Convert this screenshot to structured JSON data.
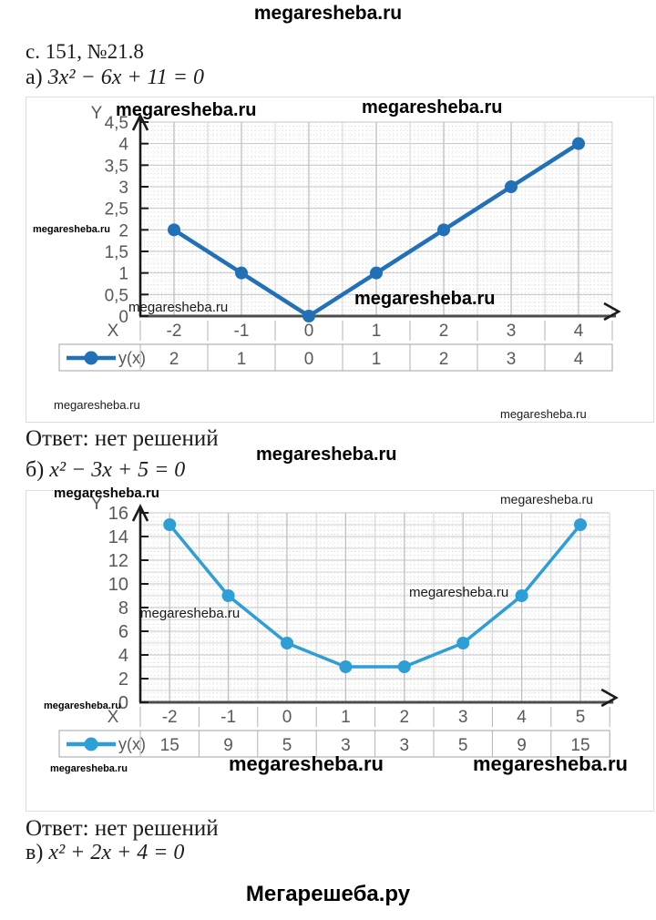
{
  "site_header": "megaresheba.ru",
  "watermark": "megaresheba.ru",
  "footer_brand": "Мегарешеба.ру",
  "problem": {
    "reference": "с. 151, №21.8",
    "parts": [
      {
        "label": "а)",
        "equation": "3x² − 6x + 11 = 0",
        "answer": "Ответ: нет решений"
      },
      {
        "label": "б)",
        "equation": "x² − 3x + 5 = 0",
        "answer": "Ответ: нет решений"
      },
      {
        "label": "в)",
        "equation": "x² + 2x + 4 = 0"
      }
    ]
  },
  "chart_data": [
    {
      "type": "line",
      "x": [
        -2,
        -1,
        0,
        1,
        2,
        3,
        4
      ],
      "series": [
        {
          "name": "y(x)",
          "values": [
            2,
            1,
            0,
            1,
            2,
            3,
            4
          ]
        }
      ],
      "xlabel": "X",
      "ylabel": "Y",
      "ylim": [
        0,
        4.5
      ],
      "ytick_step": 0.5,
      "ytick_labels": [
        "4,5",
        "4",
        "3,5",
        "3",
        "2,5",
        "2",
        "1,5",
        "1",
        "0,5",
        "0"
      ],
      "x_labels": [
        "-2",
        "-1",
        "0",
        "1",
        "2",
        "3",
        "4"
      ],
      "value_labels": [
        "2",
        "1",
        "0",
        "1",
        "2",
        "3",
        "4"
      ],
      "legend": {
        "label": "y(x)",
        "position": "bottom-left"
      },
      "grid": true,
      "line_color": "#2170b8",
      "marker": "circle"
    },
    {
      "type": "line",
      "x": [
        -2,
        -1,
        0,
        1,
        2,
        3,
        4,
        5
      ],
      "series": [
        {
          "name": "y(x)",
          "values": [
            15,
            9,
            5,
            3,
            3,
            5,
            9,
            15
          ]
        }
      ],
      "xlabel": "X",
      "ylabel": "Y",
      "ylim": [
        0,
        16
      ],
      "ytick_step": 2,
      "ytick_labels": [
        "16",
        "14",
        "12",
        "10",
        "8",
        "6",
        "4",
        "2",
        "0"
      ],
      "x_labels": [
        "-2",
        "-1",
        "0",
        "1",
        "2",
        "3",
        "4",
        "5"
      ],
      "value_labels": [
        "15",
        "9",
        "5",
        "3",
        "3",
        "5",
        "9",
        "15"
      ],
      "legend": {
        "label": "y(x)",
        "position": "bottom-left"
      },
      "grid": true,
      "line_color": "#2d9ed6",
      "marker": "circle"
    }
  ]
}
